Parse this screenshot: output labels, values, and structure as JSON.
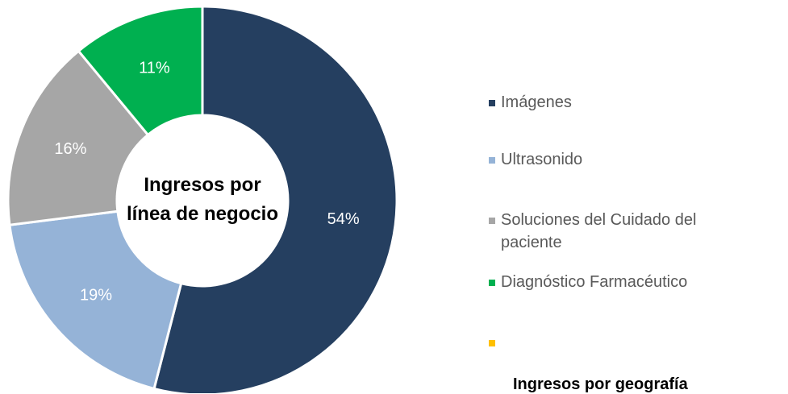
{
  "chart_data": {
    "type": "donut",
    "center_label": "Ingresos por línea de negocio",
    "categories": [
      "Imágenes",
      "Ultrasonido",
      "Soluciones del Cuidado del paciente",
      "Diagnóstico Farmacéutico",
      null
    ],
    "values": [
      54,
      19,
      16,
      11,
      null
    ],
    "value_labels": [
      "54%",
      "19%",
      "16%",
      "11%",
      null
    ],
    "colors": [
      "#253f60",
      "#95b3d7",
      "#a6a6a6",
      "#00b050",
      "#ffc000"
    ],
    "legend": "right",
    "next_title": "Ingresos por geografía"
  }
}
